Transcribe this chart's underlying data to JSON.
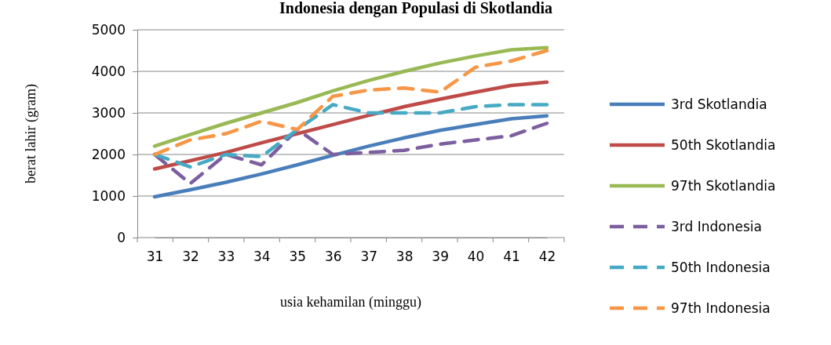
{
  "chart_data": {
    "type": "line",
    "title": "Indonesia dengan Populasi di Skotlandia",
    "xlabel": "usia kehamilan (minggu)",
    "ylabel": "berat lahir (gram)",
    "categories": [
      "31",
      "32",
      "33",
      "34",
      "35",
      "36",
      "37",
      "38",
      "39",
      "40",
      "41",
      "42"
    ],
    "ylim": [
      0,
      5000
    ],
    "yticks": [
      0,
      1000,
      2000,
      3000,
      4000,
      5000
    ],
    "grid": "y",
    "legend": "right",
    "marker": "none",
    "series": [
      {
        "name": "3rd Skotlandia",
        "color": "#4a7ebb",
        "line_style": "solid",
        "values": [
          980,
          1150,
          1330,
          1530,
          1750,
          1980,
          2200,
          2400,
          2580,
          2720,
          2860,
          2930
        ]
      },
      {
        "name": "50th Skotlandia",
        "color": "#be4b48",
        "line_style": "solid",
        "values": [
          1650,
          1850,
          2050,
          2280,
          2500,
          2720,
          2940,
          3150,
          3330,
          3500,
          3660,
          3740
        ]
      },
      {
        "name": "97th Skotlandia",
        "color": "#98b954",
        "line_style": "solid",
        "values": [
          2200,
          2480,
          2750,
          3000,
          3250,
          3530,
          3780,
          4000,
          4200,
          4370,
          4520,
          4570
        ]
      },
      {
        "name": "3rd Indonesia",
        "color": "#7d5fa0",
        "line_style": "dashed",
        "values": [
          2000,
          1300,
          2000,
          1750,
          2600,
          2000,
          2050,
          2100,
          2250,
          2350,
          2450,
          2750
        ]
      },
      {
        "name": "50th Indonesia",
        "color": "#46aac5",
        "line_style": "dashed",
        "values": [
          2000,
          1700,
          2000,
          1950,
          2600,
          3200,
          3000,
          3000,
          3000,
          3150,
          3200,
          3200
        ]
      },
      {
        "name": "97th Indonesia",
        "color": "#f79646",
        "line_style": "dashed",
        "values": [
          2000,
          2350,
          2500,
          2800,
          2600,
          3400,
          3550,
          3600,
          3500,
          4100,
          4250,
          4500
        ]
      }
    ]
  }
}
